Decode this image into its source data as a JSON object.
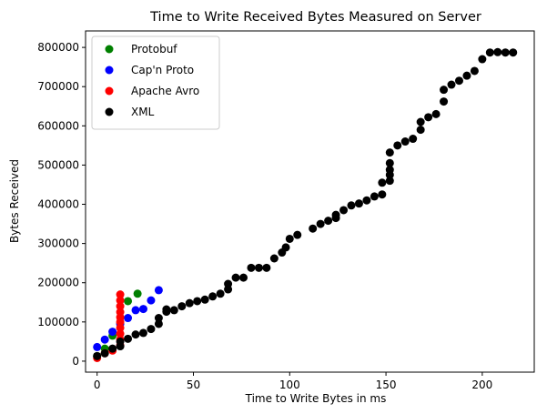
{
  "chart_data": {
    "type": "scatter",
    "title": "Time to Write Received Bytes Measured on Server",
    "xlabel": "Time to Write Bytes in ms",
    "ylabel": "Bytes Received",
    "xlim": [
      -6,
      227
    ],
    "ylim": [
      -28000,
      842000
    ],
    "xticks": [
      0,
      50,
      100,
      150,
      200
    ],
    "xtick_labels": [
      "0",
      "50",
      "100",
      "150",
      "200"
    ],
    "yticks": [
      0,
      100000,
      200000,
      300000,
      400000,
      500000,
      600000,
      700000,
      800000
    ],
    "ytick_labels": [
      "0",
      "100000",
      "200000",
      "300000",
      "400000",
      "500000",
      "600000",
      "700000",
      "800000"
    ],
    "grid": false,
    "legend_position": "top-left",
    "series": [
      {
        "name": "Protobuf",
        "color": "#008000",
        "points": [
          [
            0,
            13000
          ],
          [
            4,
            32000
          ],
          [
            8,
            65000
          ],
          [
            16,
            153000
          ],
          [
            21,
            172000
          ]
        ]
      },
      {
        "name": "Cap'n Proto",
        "color": "#0000ff",
        "points": [
          [
            0,
            36000
          ],
          [
            4,
            55000
          ],
          [
            8,
            75000
          ],
          [
            12,
            95000
          ],
          [
            16,
            110000
          ],
          [
            20,
            130000
          ],
          [
            24,
            133000
          ],
          [
            28,
            155000
          ],
          [
            32,
            181000
          ]
        ]
      },
      {
        "name": "Apache Avro",
        "color": "#ff0000",
        "points": [
          [
            0,
            8000
          ],
          [
            4,
            20000
          ],
          [
            8,
            27000
          ],
          [
            12,
            40000
          ],
          [
            12,
            55000
          ],
          [
            12,
            70000
          ],
          [
            12,
            85000
          ],
          [
            12,
            100000
          ],
          [
            12,
            112000
          ],
          [
            12,
            125000
          ],
          [
            12,
            140000
          ],
          [
            12,
            155000
          ],
          [
            12,
            170000
          ]
        ]
      },
      {
        "name": "XML",
        "color": "#000000",
        "points": [
          [
            0,
            13000
          ],
          [
            4,
            20000
          ],
          [
            8,
            32000
          ],
          [
            12,
            38000
          ],
          [
            12,
            50000
          ],
          [
            16,
            57000
          ],
          [
            20,
            68000
          ],
          [
            24,
            72000
          ],
          [
            28,
            82000
          ],
          [
            32,
            95000
          ],
          [
            32,
            110000
          ],
          [
            36,
            126000
          ],
          [
            36,
            132000
          ],
          [
            40,
            130000
          ],
          [
            44,
            140000
          ],
          [
            48,
            148000
          ],
          [
            52,
            153000
          ],
          [
            56,
            157000
          ],
          [
            60,
            165000
          ],
          [
            64,
            172000
          ],
          [
            68,
            183000
          ],
          [
            68,
            197000
          ],
          [
            72,
            213000
          ],
          [
            76,
            213000
          ],
          [
            80,
            238000
          ],
          [
            84,
            238000
          ],
          [
            88,
            238000
          ],
          [
            92,
            262000
          ],
          [
            96,
            277000
          ],
          [
            98,
            290000
          ],
          [
            100,
            312000
          ],
          [
            104,
            322000
          ],
          [
            112,
            338000
          ],
          [
            116,
            350000
          ],
          [
            120,
            358000
          ],
          [
            124,
            365000
          ],
          [
            124,
            373000
          ],
          [
            128,
            385000
          ],
          [
            132,
            397000
          ],
          [
            136,
            402000
          ],
          [
            140,
            410000
          ],
          [
            144,
            420000
          ],
          [
            148,
            425000
          ],
          [
            148,
            455000
          ],
          [
            152,
            460000
          ],
          [
            152,
            475000
          ],
          [
            152,
            488000
          ],
          [
            152,
            505000
          ],
          [
            152,
            532000
          ],
          [
            156,
            550000
          ],
          [
            160,
            560000
          ],
          [
            164,
            567000
          ],
          [
            168,
            590000
          ],
          [
            168,
            610000
          ],
          [
            172,
            622000
          ],
          [
            176,
            630000
          ],
          [
            180,
            662000
          ],
          [
            180,
            692000
          ],
          [
            184,
            705000
          ],
          [
            188,
            715000
          ],
          [
            192,
            728000
          ],
          [
            196,
            740000
          ],
          [
            200,
            770000
          ],
          [
            204,
            787000
          ],
          [
            208,
            788000
          ],
          [
            212,
            787000
          ],
          [
            216,
            787000
          ]
        ]
      }
    ]
  }
}
